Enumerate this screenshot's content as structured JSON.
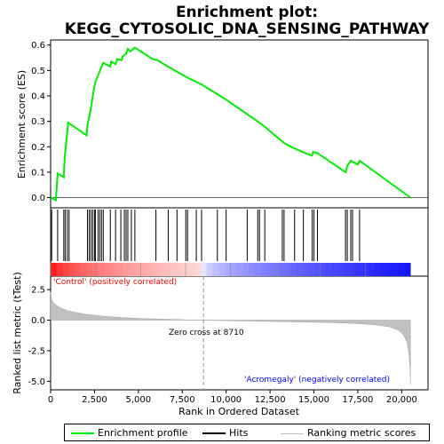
{
  "chart_data": {
    "type": "line",
    "title_line1": "Enrichment plot:",
    "title_line2": "KEGG_CYTOSOLIC_DNA_SENSING_PATHWAY",
    "xlabel": "Rank in Ordered Dataset",
    "ylabel_top": "Enrichment score (ES)",
    "ylabel_bottom": "Ranked list metric (tTest)",
    "xlim": [
      0,
      21500
    ],
    "ylim_top": [
      -0.04,
      0.62
    ],
    "ylim_bottom": [
      -5.7,
      3.6
    ],
    "x_ticks": [
      0,
      2500,
      5000,
      7500,
      10000,
      12500,
      15000,
      17500,
      20000
    ],
    "x_tick_labels": [
      "0",
      "2,500",
      "5,000",
      "7,500",
      "10,000",
      "12,500",
      "15,000",
      "17,500",
      "20,000"
    ],
    "y_ticks_top": [
      0.0,
      0.1,
      0.2,
      0.3,
      0.4,
      0.5,
      0.6
    ],
    "y_tick_labels_top": [
      "0.0",
      "0.1",
      "0.2",
      "0.3",
      "0.4",
      "0.5",
      "0.6"
    ],
    "y_ticks_bottom": [
      2.5,
      0.0,
      -2.5,
      -5.0
    ],
    "y_tick_labels_bottom": [
      "2.5",
      "0.0",
      "-2.5",
      "-5.0"
    ],
    "label_pos": "'Control' (positively correlated)",
    "label_neg": "'Acromegaly' (negatively correlated)",
    "zero_cross_label": "Zero cross at 8710",
    "zero_cross": 8710,
    "total_genes": 20500,
    "hits": [
      60,
      400,
      750,
      830,
      950,
      1050,
      2100,
      2200,
      2300,
      2400,
      2500,
      2550,
      2700,
      2800,
      2900,
      3000,
      3400,
      3700,
      4000,
      4200,
      4300,
      4400,
      4600,
      4800,
      6000,
      6700,
      7200,
      7700,
      7800,
      8300,
      8600,
      9500,
      10000,
      11200,
      11800,
      11900,
      12200,
      13200,
      13300,
      13900,
      14400,
      14900,
      15000,
      15200,
      16800,
      16900,
      17100,
      17200,
      17600
    ],
    "es_curve": [
      [
        0,
        0.0
      ],
      [
        300,
        -0.01
      ],
      [
        400,
        0.095
      ],
      [
        750,
        0.08
      ],
      [
        800,
        0.155
      ],
      [
        900,
        0.225
      ],
      [
        1000,
        0.295
      ],
      [
        2050,
        0.245
      ],
      [
        2100,
        0.285
      ],
      [
        2200,
        0.32
      ],
      [
        2300,
        0.355
      ],
      [
        2450,
        0.42
      ],
      [
        2550,
        0.455
      ],
      [
        2700,
        0.48
      ],
      [
        2850,
        0.505
      ],
      [
        3000,
        0.53
      ],
      [
        3400,
        0.515
      ],
      [
        3450,
        0.535
      ],
      [
        3700,
        0.525
      ],
      [
        3800,
        0.545
      ],
      [
        4050,
        0.54
      ],
      [
        4100,
        0.555
      ],
      [
        4300,
        0.565
      ],
      [
        4400,
        0.585
      ],
      [
        4550,
        0.575
      ],
      [
        4800,
        0.59
      ],
      [
        5800,
        0.545
      ],
      [
        6100,
        0.54
      ],
      [
        6700,
        0.515
      ],
      [
        7200,
        0.495
      ],
      [
        7700,
        0.475
      ],
      [
        8600,
        0.445
      ],
      [
        10000,
        0.385
      ],
      [
        12000,
        0.29
      ],
      [
        13300,
        0.215
      ],
      [
        13700,
        0.2
      ],
      [
        14500,
        0.175
      ],
      [
        14900,
        0.165
      ],
      [
        14950,
        0.18
      ],
      [
        15200,
        0.175
      ],
      [
        16800,
        0.1
      ],
      [
        16900,
        0.125
      ],
      [
        17100,
        0.145
      ],
      [
        17500,
        0.13
      ],
      [
        17600,
        0.145
      ],
      [
        20500,
        0.0
      ]
    ],
    "metric_curve": [
      [
        0,
        2.3
      ],
      [
        50,
        1.7
      ],
      [
        200,
        1.35
      ],
      [
        500,
        1.05
      ],
      [
        1000,
        0.75
      ],
      [
        2000,
        0.48
      ],
      [
        3000,
        0.32
      ],
      [
        4000,
        0.22
      ],
      [
        5000,
        0.15
      ],
      [
        6000,
        0.1
      ],
      [
        7000,
        0.06
      ],
      [
        8000,
        0.02
      ],
      [
        8710,
        0.0
      ],
      [
        10000,
        -0.04
      ],
      [
        12000,
        -0.09
      ],
      [
        14000,
        -0.14
      ],
      [
        16000,
        -0.2
      ],
      [
        17500,
        -0.28
      ],
      [
        18500,
        -0.38
      ],
      [
        19300,
        -0.55
      ],
      [
        19800,
        -0.8
      ],
      [
        20100,
        -1.2
      ],
      [
        20300,
        -1.8
      ],
      [
        20400,
        -2.6
      ],
      [
        20480,
        -4.0
      ],
      [
        20500,
        -5.3
      ]
    ],
    "colors": {
      "curve": "#00ee00",
      "hit": "#000000",
      "metric_fill": "#c0c0c0",
      "pos_band": "#ff0000",
      "neg_band": "#0000ff",
      "pos_text": "#ff0000",
      "neg_text": "#0000ff"
    },
    "legend": [
      {
        "label": "Enrichment profile",
        "swatch": "curve"
      },
      {
        "label": "Hits",
        "swatch": "hit"
      },
      {
        "label": "Ranking metric scores",
        "swatch": "metric"
      }
    ]
  }
}
